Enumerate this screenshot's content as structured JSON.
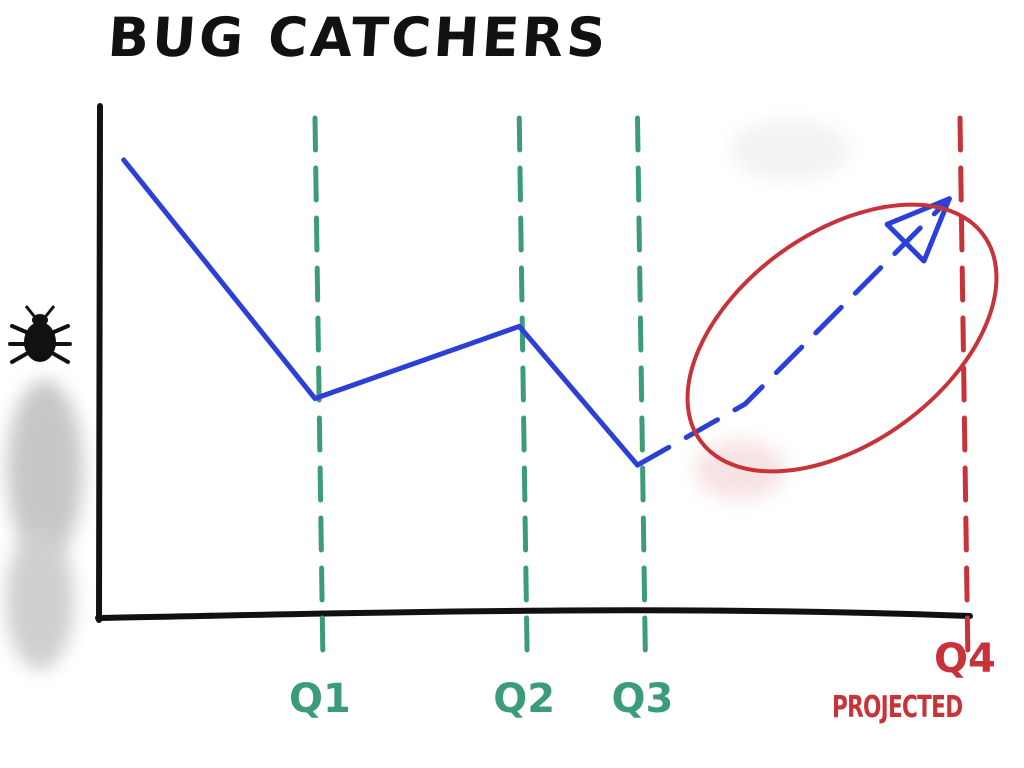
{
  "title": "BUG CATCHERS",
  "colors": {
    "axis": "#111111",
    "line": "#2c3fd6",
    "quarter_marker": "#3d9c78",
    "projection_marker": "#c8333a",
    "smudge": "#9a9a9a"
  },
  "icons": {
    "y_axis_icon": "bug-icon"
  },
  "chart_data": {
    "type": "line",
    "title": "BUG CATCHERS",
    "xlabel": "",
    "ylabel": "",
    "y_axis_icon": "bug-icon",
    "x_range": [
      0,
      4
    ],
    "y_range": [
      0,
      10
    ],
    "grid": false,
    "series": [
      {
        "style": "solid",
        "x": [
          0.11,
          1.0,
          1.95,
          2.5
        ],
        "y": [
          8.2,
          3.9,
          5.2,
          2.7
        ]
      },
      {
        "style": "dashed-arrow",
        "x": [
          2.5,
          3.0,
          3.95
        ],
        "y": [
          2.7,
          3.8,
          7.5
        ]
      }
    ],
    "markers": [
      {
        "label": "Q1",
        "x": 1.0,
        "kind": "quarter"
      },
      {
        "label": "Q2",
        "x": 1.95,
        "kind": "quarter"
      },
      {
        "label": "Q3",
        "x": 2.5,
        "kind": "quarter"
      },
      {
        "label": "Q4",
        "sublabel": "PROJECTED",
        "x": 4.0,
        "kind": "projected"
      }
    ],
    "annotations": [
      {
        "type": "ellipse",
        "around": "projected-trend"
      }
    ]
  }
}
